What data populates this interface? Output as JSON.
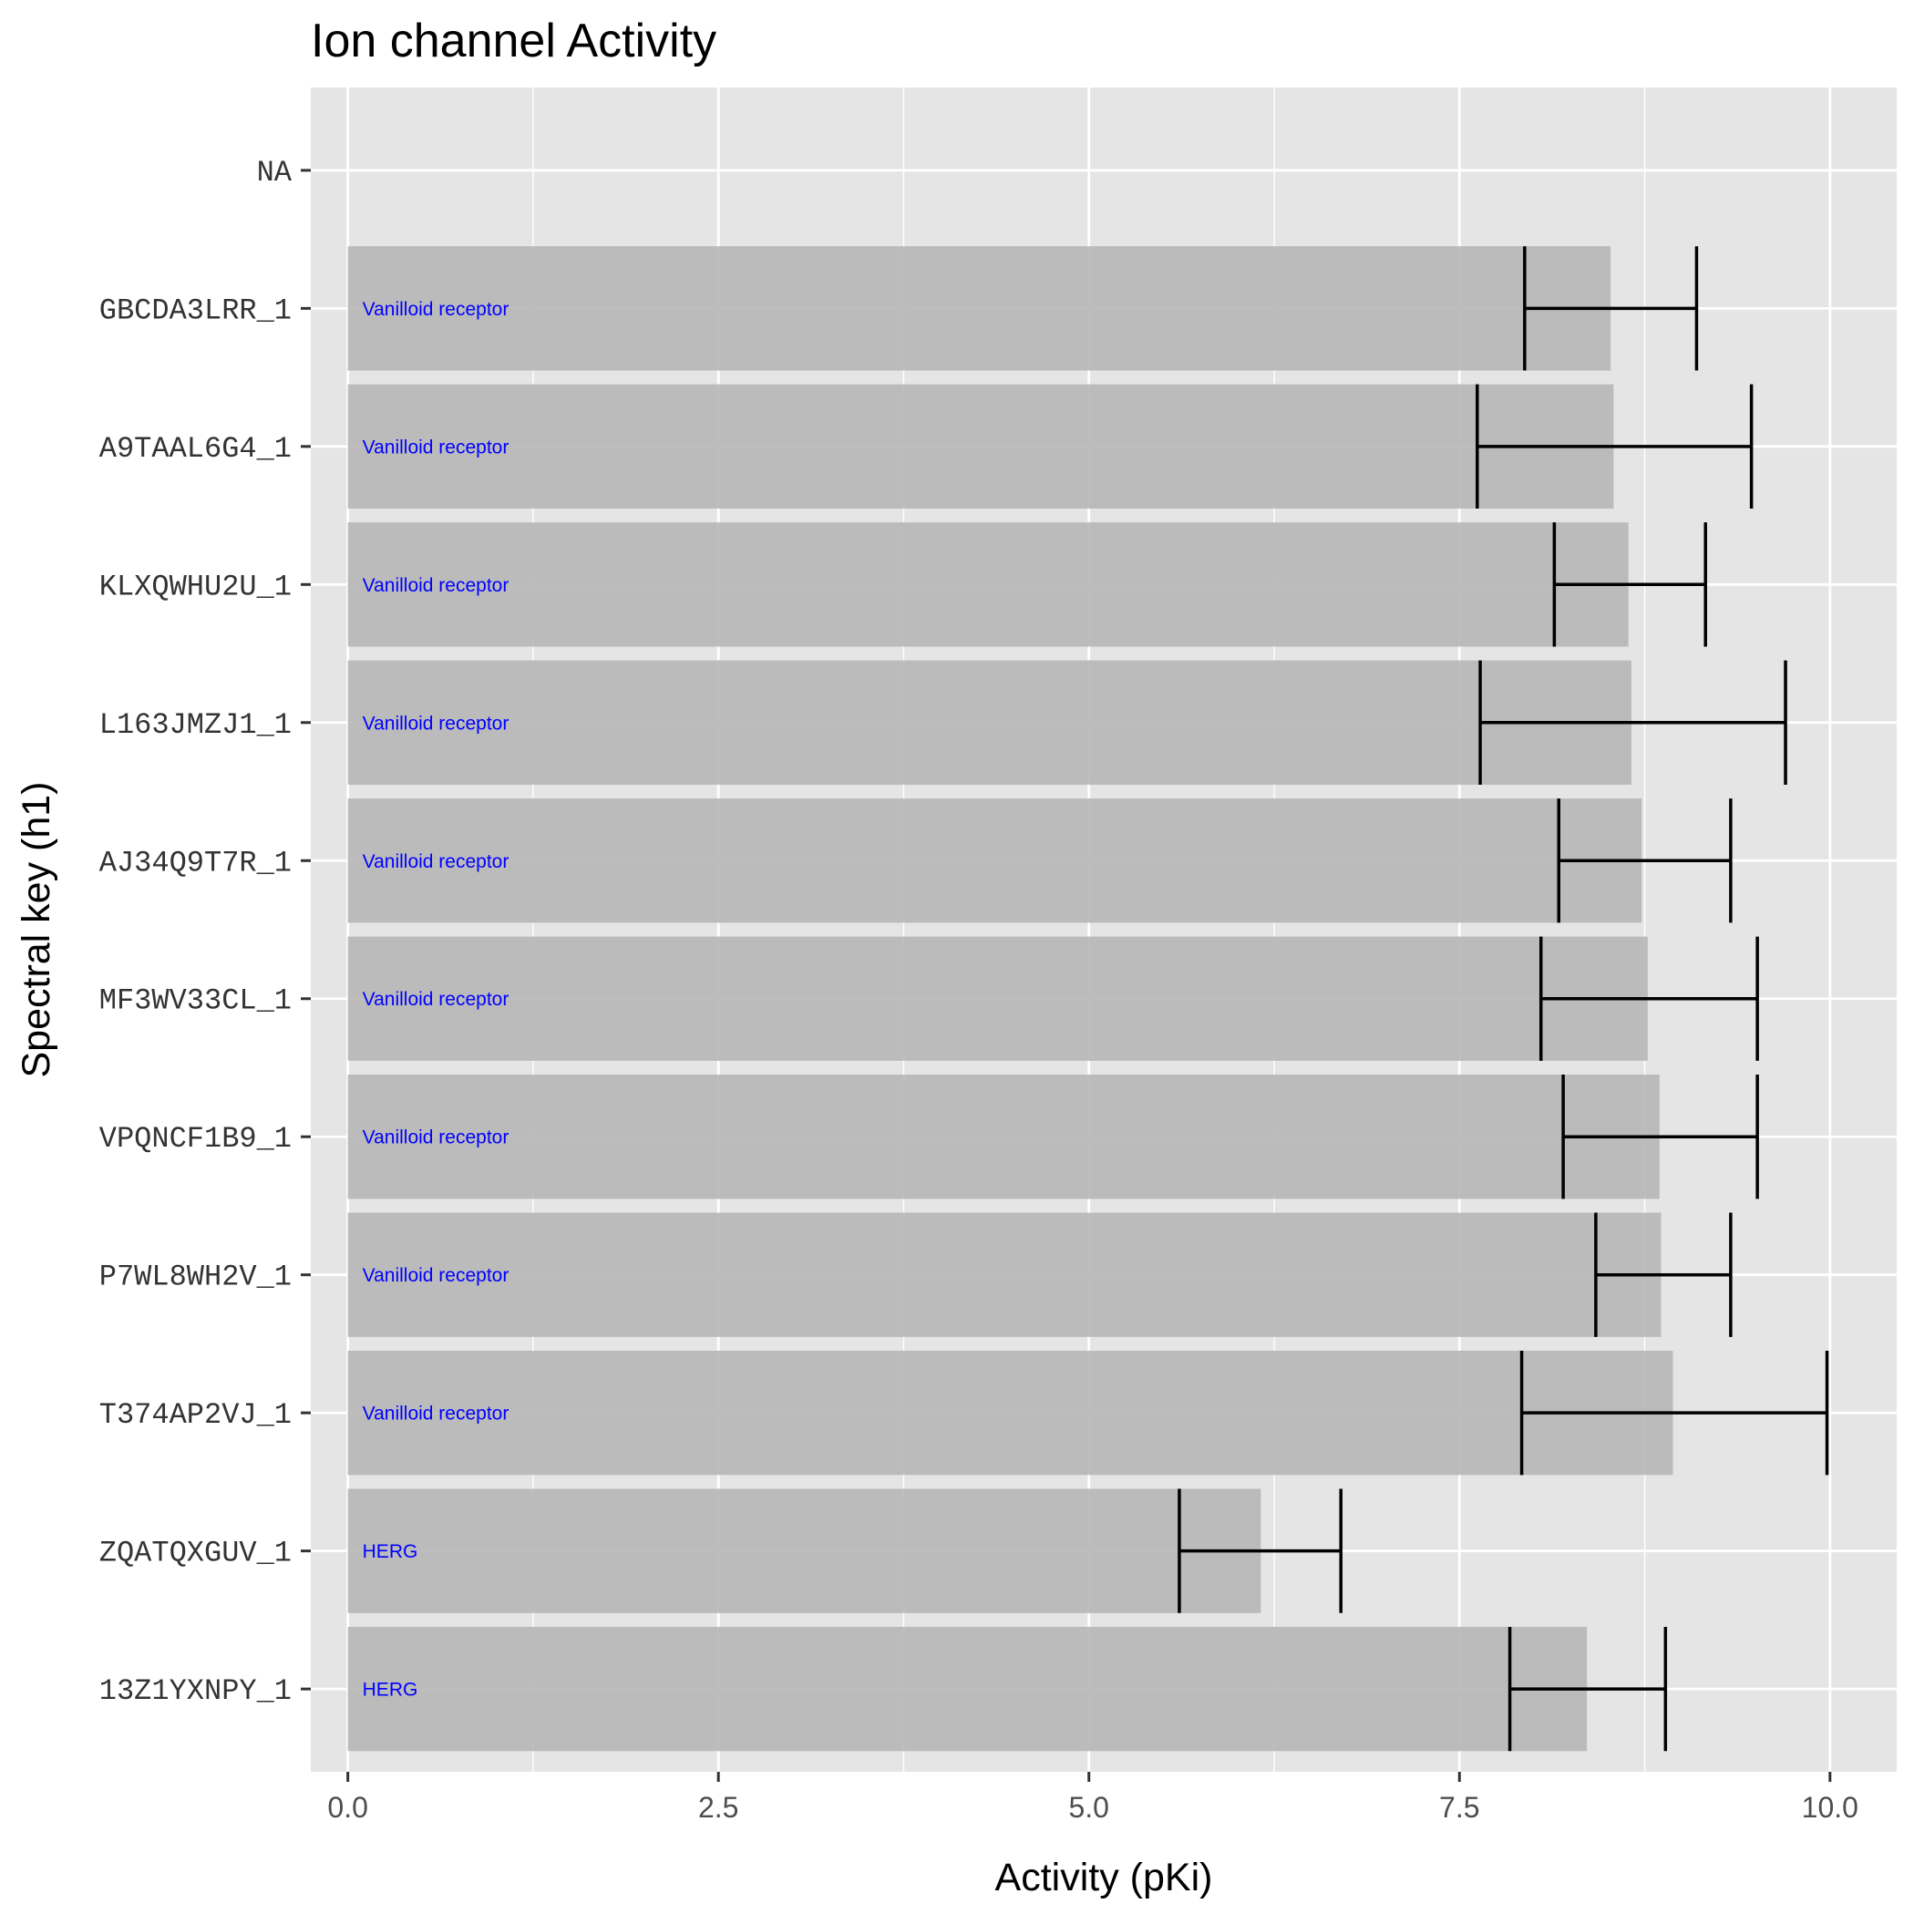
{
  "chart_data": {
    "type": "bar",
    "orientation": "horizontal",
    "title": "Ion channel Activity",
    "xlabel": "Activity (pKi)",
    "ylabel": "Spectral key (h1)",
    "xlim": [
      -0.25,
      10.45
    ],
    "x_ticks": [
      "0.0",
      "2.5",
      "5.0",
      "7.5",
      "10.0"
    ],
    "x_tick_values": [
      0,
      2.5,
      5,
      7.5,
      10
    ],
    "grid": true,
    "legend": "none",
    "colors": {
      "panel_background": "#e5e5e5",
      "grid": "#ffffff",
      "bar": "#b6b6b6",
      "error_bar": "#000000",
      "bar_label": "#0000ff"
    },
    "categories": [
      "NA",
      "GBCDA3LRR_1",
      "A9TAAL6G4_1",
      "KLXQWHU2U_1",
      "L163JMZJ1_1",
      "AJ34Q9T7R_1",
      "MF3WV33CL_1",
      "VPQNCF1B9_1",
      "P7WL8WH2V_1",
      "T374AP2VJ_1",
      "ZQATQXGUV_1",
      "13Z1YXNPY_1"
    ],
    "values": [
      null,
      8.52,
      8.54,
      8.64,
      8.66,
      8.73,
      8.77,
      8.85,
      8.86,
      8.94,
      6.16,
      8.36
    ],
    "error_low": [
      null,
      7.94,
      7.62,
      8.14,
      7.64,
      8.17,
      8.05,
      8.2,
      8.42,
      7.92,
      5.61,
      7.84
    ],
    "error_high": [
      null,
      9.1,
      9.47,
      9.16,
      9.7,
      9.33,
      9.51,
      9.51,
      9.33,
      9.98,
      6.7,
      8.89
    ],
    "bar_labels": [
      "",
      "Vanilloid receptor",
      "Vanilloid receptor",
      "Vanilloid receptor",
      "Vanilloid receptor",
      "Vanilloid receptor",
      "Vanilloid receptor",
      "Vanilloid receptor",
      "Vanilloid receptor",
      "Vanilloid receptor",
      "HERG",
      "HERG"
    ]
  }
}
